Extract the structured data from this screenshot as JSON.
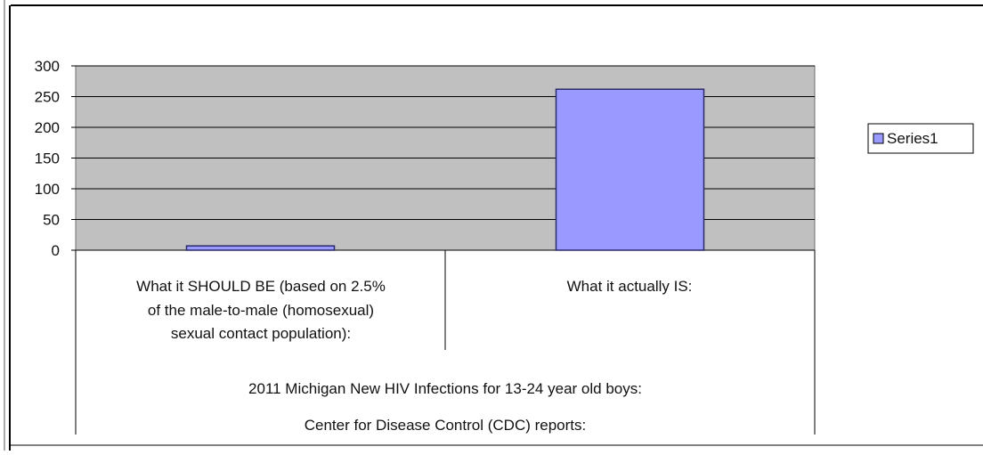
{
  "colors": {
    "plot_background": "#c0c0c0",
    "bar_fill": "#9999ff",
    "bar_stroke": "#2a2a6a",
    "gridline": "#000000",
    "frame": "#000000",
    "page_background": "#ffffff"
  },
  "chart_data": {
    "type": "bar",
    "categories": [
      [
        "What it SHOULD BE (based on 2.5%",
        "of the male-to-male (homosexual)",
        "sexual contact population):"
      ],
      [
        "What it actually IS:"
      ]
    ],
    "series": [
      {
        "name": "Series1",
        "values": [
          7,
          262
        ]
      }
    ],
    "group_labels": [
      "2011 Michigan New HIV Infections for 13-24 year old boys:",
      "Center for Disease Control (CDC) reports:"
    ],
    "ylim": [
      0,
      300
    ],
    "yticks": [
      0,
      50,
      100,
      150,
      200,
      250,
      300
    ],
    "grid": true,
    "legend": {
      "position": "right"
    }
  }
}
